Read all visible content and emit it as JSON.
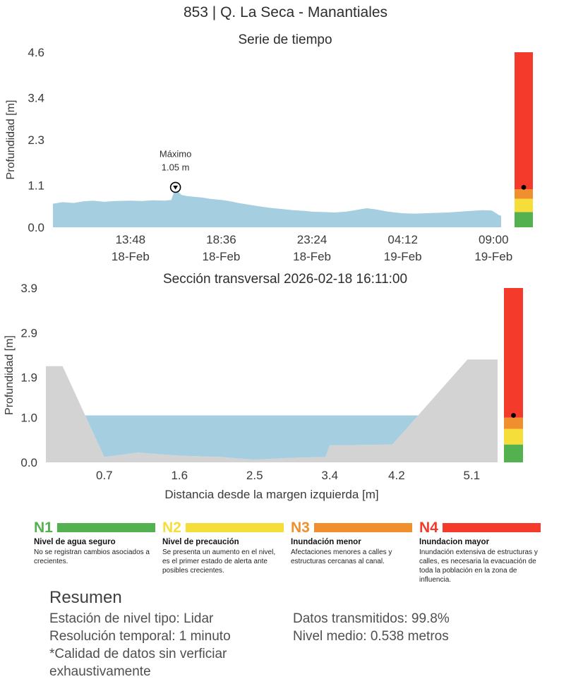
{
  "page_title": "853 | Q. La Seca - Manantiales",
  "palette": {
    "water": "#a5cee0",
    "terrain": "#d3d3d3",
    "n1": "#53b14f",
    "n2": "#f5de39",
    "n3": "#f08f2e",
    "n4": "#f43a2a"
  },
  "chart_data": [
    {
      "id": "timeseries",
      "type": "area",
      "title": "Serie de tiempo",
      "ylabel": "Profundidad [m]",
      "ylim": [
        0,
        4.6
      ],
      "ytick_values": [
        0,
        1.1,
        2.3,
        3.4,
        4.6
      ],
      "yticks": [
        "0.0",
        "1.1",
        "2.3",
        "3.4",
        "4.6"
      ],
      "xlim": [
        9.7,
        33.4
      ],
      "xticks": [
        {
          "value": 13.8,
          "label": "13:48",
          "sublabel": "18-Feb"
        },
        {
          "value": 18.6,
          "label": "18:36",
          "sublabel": "18-Feb"
        },
        {
          "value": 23.4,
          "label": "23:24",
          "sublabel": "18-Feb"
        },
        {
          "value": 28.2,
          "label": "04:12",
          "sublabel": "19-Feb"
        },
        {
          "value": 33.0,
          "label": "09:00",
          "sublabel": "19-Feb"
        }
      ],
      "series_name": "Profundidad",
      "fill_color": "#a5cee0",
      "points": [
        [
          9.7,
          0.62
        ],
        [
          10.2,
          0.66
        ],
        [
          10.8,
          0.64
        ],
        [
          11.3,
          0.68
        ],
        [
          11.8,
          0.7
        ],
        [
          12.4,
          0.67
        ],
        [
          13.0,
          0.69
        ],
        [
          13.8,
          0.7
        ],
        [
          14.4,
          0.69
        ],
        [
          15.0,
          0.71
        ],
        [
          15.6,
          0.7
        ],
        [
          15.95,
          0.72
        ],
        [
          16.05,
          0.85
        ],
        [
          16.18,
          1.05
        ],
        [
          16.35,
          0.92
        ],
        [
          16.5,
          0.85
        ],
        [
          16.8,
          0.82
        ],
        [
          17.2,
          0.8
        ],
        [
          17.6,
          0.78
        ],
        [
          18.0,
          0.75
        ],
        [
          18.6,
          0.72
        ],
        [
          19.0,
          0.69
        ],
        [
          19.5,
          0.64
        ],
        [
          20.0,
          0.6
        ],
        [
          20.6,
          0.55
        ],
        [
          21.2,
          0.51
        ],
        [
          21.8,
          0.48
        ],
        [
          22.4,
          0.45
        ],
        [
          23.0,
          0.43
        ],
        [
          23.4,
          0.41
        ],
        [
          24.0,
          0.4
        ],
        [
          24.6,
          0.39
        ],
        [
          25.2,
          0.41
        ],
        [
          25.8,
          0.46
        ],
        [
          26.3,
          0.5
        ],
        [
          26.8,
          0.47
        ],
        [
          27.3,
          0.42
        ],
        [
          27.8,
          0.39
        ],
        [
          28.2,
          0.37
        ],
        [
          28.8,
          0.36
        ],
        [
          29.4,
          0.37
        ],
        [
          30.0,
          0.38
        ],
        [
          30.6,
          0.39
        ],
        [
          31.2,
          0.41
        ],
        [
          31.8,
          0.43
        ],
        [
          32.4,
          0.45
        ],
        [
          32.9,
          0.44
        ],
        [
          33.1,
          0.38
        ],
        [
          33.25,
          0.33
        ],
        [
          33.4,
          0.3
        ]
      ],
      "annotation": {
        "x": 16.18,
        "y": 1.05,
        "line1": "Máximo",
        "line2": "1.05 m"
      },
      "gauge": {
        "thresholds": [
          0,
          0.4,
          0.75,
          1.0,
          4.6
        ],
        "colors": [
          "#53b14f",
          "#f5de39",
          "#f08f2e",
          "#f43a2a"
        ],
        "marker": 1.05
      }
    },
    {
      "id": "cross_section",
      "type": "area",
      "title": "Sección transversal 2026-02-18 16:11:00",
      "ylabel": "Profundidad [m]",
      "xlabel": "Distancia desde la margen izquierda [m]",
      "ylim": [
        0,
        3.9
      ],
      "ytick_values": [
        0,
        1.0,
        1.9,
        2.9,
        3.9
      ],
      "yticks": [
        "0.0",
        "1.0",
        "1.9",
        "2.9",
        "3.9"
      ],
      "xlim": [
        0,
        5.41
      ],
      "xticks": [
        {
          "value": 0.7,
          "label": "0.7"
        },
        {
          "value": 1.6,
          "label": "1.6"
        },
        {
          "value": 2.5,
          "label": "2.5"
        },
        {
          "value": 3.4,
          "label": "3.4"
        },
        {
          "value": 4.2,
          "label": "4.2"
        },
        {
          "value": 5.1,
          "label": "5.1"
        }
      ],
      "terrain": {
        "color": "#d3d3d3",
        "points": [
          [
            0,
            2.15
          ],
          [
            0.2,
            2.15
          ],
          [
            0.7,
            0.12
          ],
          [
            1.1,
            0.22
          ],
          [
            1.6,
            0.15
          ],
          [
            2.1,
            0.12
          ],
          [
            2.5,
            0.06
          ],
          [
            2.9,
            0.1
          ],
          [
            3.35,
            0.12
          ],
          [
            3.4,
            0.38
          ],
          [
            4.15,
            0.4
          ],
          [
            5.05,
            2.3
          ],
          [
            5.41,
            2.3
          ]
        ]
      },
      "water": {
        "color": "#a5cee0",
        "level": 1.05,
        "points": [
          [
            0.471,
            1.05
          ],
          [
            0.7,
            0.12
          ],
          [
            1.1,
            0.22
          ],
          [
            1.6,
            0.15
          ],
          [
            2.1,
            0.12
          ],
          [
            2.5,
            0.06
          ],
          [
            2.9,
            0.1
          ],
          [
            3.35,
            0.12
          ],
          [
            3.4,
            0.38
          ],
          [
            4.15,
            0.4
          ],
          [
            4.458,
            1.05
          ]
        ]
      },
      "gauge": {
        "thresholds": [
          0,
          0.4,
          0.75,
          1.0,
          3.9
        ],
        "colors": [
          "#53b14f",
          "#f5de39",
          "#f08f2e",
          "#f43a2a"
        ],
        "marker": 1.05
      }
    }
  ],
  "legend": {
    "levels": [
      {
        "code": "N1",
        "color": "#53b14f",
        "name": "Nivel de agua seguro",
        "description": "No se registran cambios asociados a crecientes."
      },
      {
        "code": "N2",
        "color": "#f5de39",
        "name": "Nivel de precaución",
        "description": "Se presenta un aumento en el nivel, es el primer estado de alerta ante posibles crecientes."
      },
      {
        "code": "N3",
        "color": "#f08f2e",
        "name": "Inundación menor",
        "description": "Afectaciones menores a calles y estructuras cercanas al canal."
      },
      {
        "code": "N4",
        "color": "#f43a2a",
        "name": "Inundacion mayor",
        "description": "Inundación extensiva de estructuras y calles, es necesaria la evacuación de toda la población en la zona de influencia."
      }
    ]
  },
  "summary": {
    "title": "Resumen",
    "left": [
      "Estación de nivel tipo: Lidar",
      "Resolución temporal: 1 minuto",
      "*Calidad de datos sin verficiar exhaustivamente"
    ],
    "right": [
      "Datos transmitidos: 99.8%",
      "Nivel medio: 0.538 metros"
    ]
  }
}
